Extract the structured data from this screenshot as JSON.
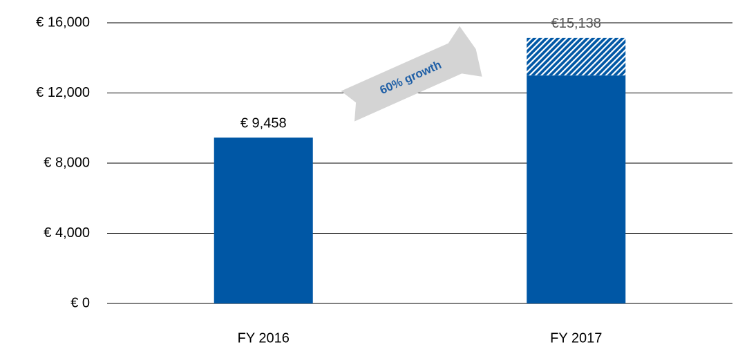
{
  "chart_data": {
    "type": "bar",
    "stacked": true,
    "categories": [
      "FY 2016",
      "FY 2017"
    ],
    "series": [
      {
        "color": "#0057a5",
        "values": [
          9458,
          13000
        ]
      },
      {
        "color": "#0057a5",
        "pattern": "hatch",
        "values": [
          null,
          2138
        ]
      }
    ],
    "totals": [
      9458,
      15138
    ],
    "total_labels": [
      "€ 9,458",
      "€15,138"
    ],
    "annotation": "60% growth",
    "ylim": [
      0,
      16000
    ],
    "yticks": [
      {
        "value": 0,
        "label": "€ 0"
      },
      {
        "value": 4000,
        "label": "€ 4,000"
      },
      {
        "value": 8000,
        "label": "€ 8,000"
      },
      {
        "value": 12000,
        "label": "€ 12,000"
      },
      {
        "value": 16000,
        "label": "€ 16,000"
      }
    ],
    "grid": true
  }
}
